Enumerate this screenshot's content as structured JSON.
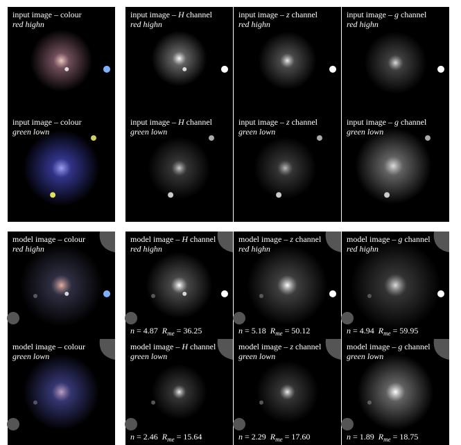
{
  "grid": {
    "symbols": {
      "n": "n",
      "eq": "=",
      "r": "R",
      "r_sub": "me"
    },
    "rows": [
      [
        {
          "title": [
            "input image – colour"
          ],
          "subtitle": "red highn"
        },
        {
          "title": [
            "input image – ",
            "H",
            " channel"
          ],
          "subtitle": "red highn"
        },
        {
          "title": [
            "input image – ",
            "z",
            " channel"
          ],
          "subtitle": "red highn"
        },
        {
          "title": [
            "input image – ",
            "g",
            " channel"
          ],
          "subtitle": "red highn"
        }
      ],
      [
        {
          "title": [
            "input image – colour"
          ],
          "subtitle": "green lown"
        },
        {
          "title": [
            "input image – ",
            "H",
            " channel"
          ],
          "subtitle": "green lown"
        },
        {
          "title": [
            "input image – ",
            "z",
            " channel"
          ],
          "subtitle": "green lown"
        },
        {
          "title": [
            "input image – ",
            "g",
            " channel"
          ],
          "subtitle": "green lown"
        }
      ],
      [
        {
          "title": [
            "model image – colour"
          ],
          "subtitle": "red highn"
        },
        {
          "title": [
            "model image – ",
            "H",
            " channel"
          ],
          "subtitle": "red highn",
          "stats": {
            "n": "4.87",
            "r_me": "36.25"
          }
        },
        {
          "title": [
            "model image – ",
            "z",
            " channel"
          ],
          "subtitle": "red highn",
          "stats": {
            "n": "5.18",
            "r_me": "50.12"
          }
        },
        {
          "title": [
            "model image – ",
            "g",
            " channel"
          ],
          "subtitle": "red highn",
          "stats": {
            "n": "4.94",
            "r_me": "59.95"
          }
        }
      ],
      [
        {
          "title": [
            "model image – colour"
          ],
          "subtitle": "green lown"
        },
        {
          "title": [
            "model image – ",
            "H",
            " channel"
          ],
          "subtitle": "green lown",
          "stats": {
            "n": "2.46",
            "r_me": "15.64"
          }
        },
        {
          "title": [
            "model image – ",
            "z",
            " channel"
          ],
          "subtitle": "green lown",
          "stats": {
            "n": "2.29",
            "r_me": "17.60"
          }
        },
        {
          "title": [
            "model image – ",
            "g",
            " channel"
          ],
          "subtitle": "green lown",
          "stats": {
            "n": "1.89",
            "r_me": "18.75"
          }
        }
      ]
    ]
  }
}
